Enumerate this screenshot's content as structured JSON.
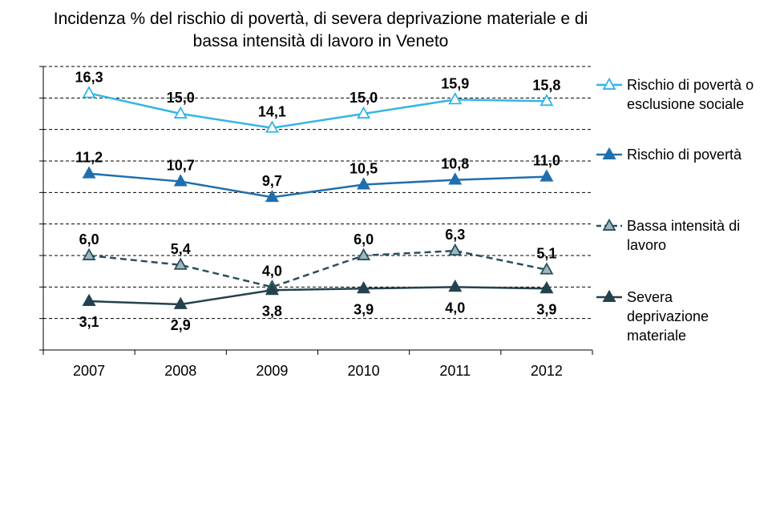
{
  "chart_data": {
    "type": "line",
    "title_line1": "Incidenza % del rischio di povertà,  di severa deprivazione materiale e di",
    "title_line2": "bassa intensità di lavoro in Veneto",
    "categories": [
      "2007",
      "2008",
      "2009",
      "2010",
      "2011",
      "2012"
    ],
    "ylim": [
      0,
      18
    ],
    "grid": true,
    "legend_position": "right",
    "series": [
      {
        "name": "Rischio di povertà o esclusione sociale",
        "legend_lines": [
          "Rischio di povertà o",
          "esclusione sociale"
        ],
        "values": [
          16.3,
          15.0,
          14.1,
          15.0,
          15.9,
          15.8
        ],
        "labels": [
          "16,3",
          "15,0",
          "14,1",
          "15,0",
          "15,9",
          "15,8"
        ],
        "color": "#33b5e5",
        "dashed": false,
        "marker": "triangle-open",
        "label_pos": "above"
      },
      {
        "name": "Rischio di povertà",
        "legend_lines": [
          "Rischio di povertà"
        ],
        "values": [
          11.2,
          10.7,
          9.7,
          10.5,
          10.8,
          11.0
        ],
        "labels": [
          "11,2",
          "10,7",
          "9,7",
          "10,5",
          "10,8",
          "11,0"
        ],
        "color": "#1f6fae",
        "dashed": false,
        "marker": "triangle-filled",
        "label_pos": "above"
      },
      {
        "name": "Bassa intensità di lavoro",
        "legend_lines": [
          "Bassa intensità di",
          "lavoro"
        ],
        "values": [
          6.0,
          5.4,
          4.0,
          6.0,
          6.3,
          5.1
        ],
        "labels": [
          "6,0",
          "5,4",
          "4,0",
          "6,0",
          "6,3",
          "5,1"
        ],
        "color": "#2b4f5c",
        "dashed": true,
        "marker": "triangle-open",
        "label_pos": "above"
      },
      {
        "name": "Severa deprivazione materiale",
        "legend_lines": [
          "Severa",
          "deprivazione",
          "materiale"
        ],
        "values": [
          3.1,
          2.9,
          3.8,
          3.9,
          4.0,
          3.9
        ],
        "labels": [
          "3,1",
          "2,9",
          "3,8",
          "3,9",
          "4,0",
          "3,9"
        ],
        "color": "#24424d",
        "dashed": false,
        "marker": "triangle-filled",
        "label_pos": "below"
      }
    ]
  }
}
